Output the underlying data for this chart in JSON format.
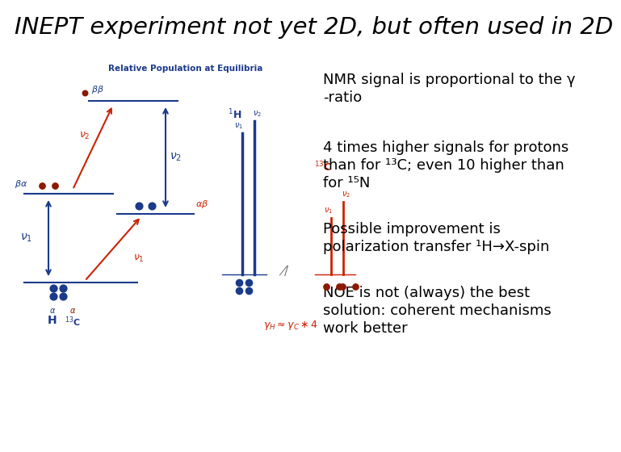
{
  "title": "INEPT experiment not yet 2D, but often used in 2D",
  "title_fontsize": 21,
  "bg_color": "#ffffff",
  "left_panel_title": "Relative Population at Equilibria",
  "bullet1_line1": "NMR signal is proportional to the γ",
  "bullet1_line2": "-ratio",
  "bullet2_line1": "4 times higher signals for protons",
  "bullet2_line2": "than for ¹³C; even 10 higher than",
  "bullet2_line3": "for ¹⁵N",
  "bullet3_line1": "Possible improvement is",
  "bullet3_line2": "polarization transfer ¹H→X-spin",
  "bullet4_line1": "NOE is not (always) the best",
  "bullet4_line2": "solution: coherent mechanisms",
  "bullet4_line3": "work better",
  "text_fontsize": 13,
  "text_color": "#000000",
  "blue_color": "#1a3a8a",
  "red_color": "#cc2200",
  "dark_red": "#8b1a00"
}
